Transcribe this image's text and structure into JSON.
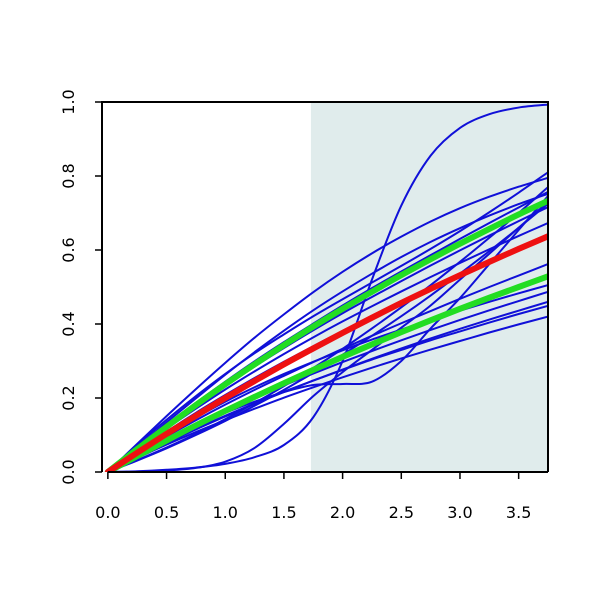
{
  "chart_data": {
    "type": "line",
    "title": "",
    "xlabel": "",
    "ylabel": "",
    "xlim": [
      -0.05,
      3.75
    ],
    "ylim": [
      0.0,
      1.0
    ],
    "x_ticks": [
      0.0,
      0.5,
      1.0,
      1.5,
      2.0,
      2.5,
      3.0,
      3.5
    ],
    "x_tick_labels": [
      "0.0",
      "0.5",
      "1.0",
      "1.5",
      "2.0",
      "2.5",
      "3.0",
      "3.5"
    ],
    "y_ticks": [
      0.0,
      0.2,
      0.4,
      0.6,
      0.8,
      1.0
    ],
    "y_tick_labels": [
      "0.0",
      "0.2",
      "0.4",
      "0.6",
      "0.8",
      "1.0"
    ],
    "grid": false,
    "shaded_region": {
      "x_from": 1.73,
      "x_to": 3.75,
      "color": "#e0ecec"
    },
    "x": [
      0.0,
      0.25,
      0.5,
      0.75,
      1.0,
      1.25,
      1.5,
      1.75,
      2.0,
      2.25,
      2.5,
      2.75,
      3.0,
      3.25,
      3.5,
      3.75
    ],
    "series": [
      {
        "color": "#1010d8",
        "width": 2,
        "values": [
          0.0,
          0.076,
          0.151,
          0.224,
          0.295,
          0.363,
          0.426,
          0.486,
          0.541,
          0.591,
          0.636,
          0.677,
          0.713,
          0.744,
          0.771,
          0.795
        ]
      },
      {
        "color": "#1010d8",
        "width": 2,
        "values": [
          0.0,
          0.067,
          0.134,
          0.199,
          0.263,
          0.324,
          0.382,
          0.437,
          0.488,
          0.536,
          0.581,
          0.622,
          0.659,
          0.693,
          0.724,
          0.752
        ]
      },
      {
        "color": "#1010d8",
        "width": 2,
        "values": [
          0.0,
          0.073,
          0.141,
          0.205,
          0.265,
          0.321,
          0.372,
          0.421,
          0.467,
          0.512,
          0.557,
          0.603,
          0.651,
          0.702,
          0.755,
          0.81
        ]
      },
      {
        "color": "#1010d8",
        "width": 2,
        "values": [
          0.0,
          0.065,
          0.127,
          0.187,
          0.244,
          0.299,
          0.351,
          0.401,
          0.45,
          0.497,
          0.542,
          0.586,
          0.63,
          0.673,
          0.715,
          0.757
        ]
      },
      {
        "color": "#1010d8",
        "width": 2,
        "values": [
          0.0,
          0.062,
          0.121,
          0.178,
          0.233,
          0.285,
          0.335,
          0.383,
          0.429,
          0.473,
          0.516,
          0.558,
          0.599,
          0.639,
          0.678,
          0.716
        ]
      },
      {
        "color": "#1010d8",
        "width": 2,
        "values": [
          0.0,
          0.06,
          0.117,
          0.171,
          0.223,
          0.272,
          0.319,
          0.364,
          0.407,
          0.448,
          0.488,
          0.527,
          0.565,
          0.602,
          0.638,
          0.673
        ]
      },
      {
        "color": "#1010d8",
        "width": 2,
        "values": [
          0.0,
          0.056,
          0.109,
          0.16,
          0.208,
          0.254,
          0.298,
          0.34,
          0.381,
          0.42,
          0.458,
          0.495,
          0.531,
          0.566,
          0.6,
          0.633
        ]
      },
      {
        "color": "#1010d8",
        "width": 2,
        "values": [
          0.0,
          0.049,
          0.096,
          0.14,
          0.182,
          0.222,
          0.26,
          0.297,
          0.333,
          0.368,
          0.402,
          0.435,
          0.468,
          0.5,
          0.531,
          0.562
        ]
      },
      {
        "color": "#1010d8",
        "width": 2,
        "values": [
          0.0,
          0.052,
          0.101,
          0.147,
          0.19,
          0.229,
          0.265,
          0.298,
          0.329,
          0.358,
          0.385,
          0.411,
          0.436,
          0.46,
          0.483,
          0.505
        ]
      },
      {
        "color": "#1010d8",
        "width": 2,
        "values": [
          0.0,
          0.044,
          0.086,
          0.126,
          0.164,
          0.2,
          0.234,
          0.266,
          0.297,
          0.327,
          0.356,
          0.384,
          0.411,
          0.437,
          0.462,
          0.487
        ]
      },
      {
        "color": "#1010d8",
        "width": 2,
        "values": [
          0.0,
          0.04,
          0.078,
          0.115,
          0.15,
          0.184,
          0.216,
          0.247,
          0.277,
          0.306,
          0.334,
          0.361,
          0.387,
          0.412,
          0.436,
          0.46
        ]
      },
      {
        "color": "#1010d8",
        "width": 2,
        "values": [
          0.0,
          0.038,
          0.074,
          0.108,
          0.14,
          0.171,
          0.201,
          0.229,
          0.256,
          0.282,
          0.307,
          0.331,
          0.354,
          0.377,
          0.399,
          0.42
        ]
      },
      {
        "color": "#1010d8",
        "width": 2,
        "values": [
          0.0,
          0.032,
          0.066,
          0.103,
          0.143,
          0.186,
          0.232,
          0.281,
          0.333,
          0.388,
          0.445,
          0.505,
          0.568,
          0.633,
          0.7,
          0.77
        ]
      },
      {
        "color": "#1010d8",
        "width": 2,
        "values": [
          0.0,
          0.031,
          0.064,
          0.1,
          0.138,
          0.179,
          0.222,
          0.268,
          0.317,
          0.368,
          0.421,
          0.477,
          0.536,
          0.597,
          0.66,
          0.725
        ]
      },
      {
        "color": "#1010d8",
        "width": 2,
        "values": [
          0.0,
          0.002,
          0.006,
          0.012,
          0.022,
          0.04,
          0.073,
          0.148,
          0.3,
          0.52,
          0.72,
          0.855,
          0.93,
          0.967,
          0.985,
          0.993
        ]
      },
      {
        "color": "#1010d8",
        "width": 2,
        "values": [
          0.0,
          0.001,
          0.004,
          0.011,
          0.028,
          0.065,
          0.13,
          0.205,
          0.27,
          0.33,
          0.39,
          0.45,
          0.52,
          0.59,
          0.66,
          0.73
        ]
      },
      {
        "color": "#1010d8",
        "width": 2,
        "values": [
          0.0,
          0.046,
          0.088,
          0.126,
          0.16,
          0.19,
          0.216,
          0.235,
          0.238,
          0.244,
          0.3,
          0.388,
          0.47,
          0.562,
          0.654,
          0.746
        ]
      },
      {
        "color": "#1010d8",
        "width": 2,
        "values": [
          0.0,
          0.041,
          0.08,
          0.117,
          0.152,
          0.185,
          0.217,
          0.247,
          0.276,
          0.304,
          0.33,
          0.356,
          0.38,
          0.404,
          0.427,
          0.449
        ]
      },
      {
        "color": "#22dd22",
        "width": 6,
        "values": [
          0.0,
          0.062,
          0.122,
          0.181,
          0.237,
          0.291,
          0.343,
          0.393,
          0.441,
          0.487,
          0.532,
          0.575,
          0.617,
          0.657,
          0.696,
          0.733
        ]
      },
      {
        "color": "#22dd22",
        "width": 6,
        "values": [
          0.0,
          0.043,
          0.085,
          0.126,
          0.165,
          0.203,
          0.24,
          0.276,
          0.311,
          0.345,
          0.378,
          0.41,
          0.441,
          0.471,
          0.5,
          0.529
        ]
      },
      {
        "color": "#ee1111",
        "width": 6,
        "values": [
          0.0,
          0.052,
          0.103,
          0.152,
          0.2,
          0.246,
          0.291,
          0.334,
          0.376,
          0.417,
          0.457,
          0.495,
          0.532,
          0.568,
          0.603,
          0.637
        ]
      }
    ]
  }
}
